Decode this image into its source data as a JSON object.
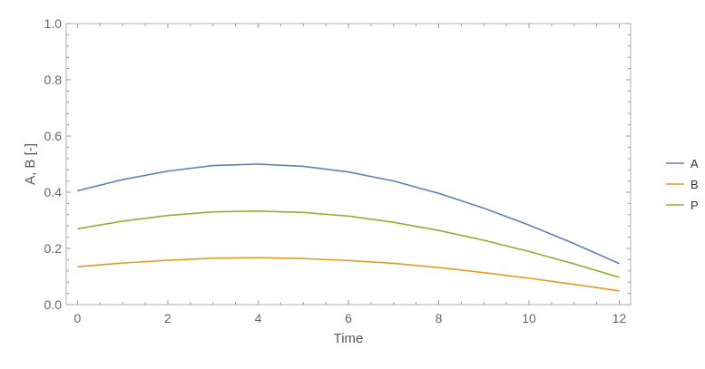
{
  "chart_data": {
    "type": "line",
    "title": "",
    "xlabel": "Time",
    "ylabel": "A, B [-]",
    "xlim": [
      -0.25,
      12.25
    ],
    "ylim": [
      0,
      1
    ],
    "x_ticks": [
      0,
      2,
      4,
      6,
      8,
      10,
      12
    ],
    "x_tick_labels": [
      "0",
      "2",
      "4",
      "6",
      "8",
      "10",
      "12"
    ],
    "y_ticks": [
      0,
      0.2,
      0.4,
      0.6,
      0.8,
      1.0
    ],
    "y_tick_labels": [
      "0.0",
      "0.2",
      "0.4",
      "0.6",
      "0.8",
      "1.0"
    ],
    "grid": false,
    "legend_position": "right",
    "x": [
      0,
      1,
      2,
      3,
      4,
      5,
      6,
      7,
      8,
      9,
      10,
      11,
      12
    ],
    "series": [
      {
        "name": "A",
        "color": "#5e81b5",
        "values": [
          0.405,
          0.445,
          0.475,
          0.495,
          0.5,
          0.492,
          0.472,
          0.44,
          0.396,
          0.343,
          0.283,
          0.217,
          0.146
        ]
      },
      {
        "name": "B",
        "color": "#e19c24",
        "values": [
          0.135,
          0.148,
          0.158,
          0.165,
          0.167,
          0.164,
          0.157,
          0.147,
          0.132,
          0.114,
          0.094,
          0.072,
          0.049
        ]
      },
      {
        "name": "P",
        "color": "#8fb032",
        "values": [
          0.27,
          0.297,
          0.317,
          0.33,
          0.333,
          0.328,
          0.315,
          0.293,
          0.264,
          0.229,
          0.189,
          0.145,
          0.097
        ]
      }
    ]
  }
}
